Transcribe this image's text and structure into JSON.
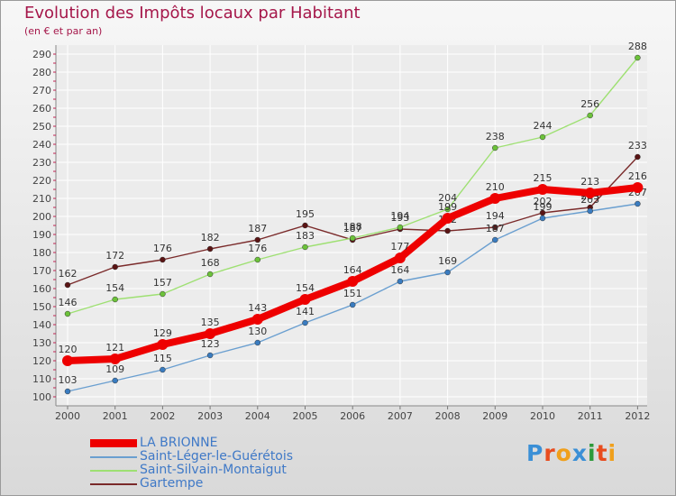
{
  "title": "Evolution des Impôts locaux par Habitant",
  "subtitle": "(en € et par an)",
  "logo": {
    "text": "Proxiti",
    "letters": [
      {
        "ch": "P",
        "color": "#3a8fd6"
      },
      {
        "ch": "r",
        "color": "#e84c1e"
      },
      {
        "ch": "o",
        "color": "#f0a01c"
      },
      {
        "ch": "x",
        "color": "#3a8fd6"
      },
      {
        "ch": "i",
        "color": "#2d9a3a"
      },
      {
        "ch": "t",
        "color": "#e84c1e"
      },
      {
        "ch": "i",
        "color": "#f0a01c"
      }
    ]
  },
  "chart_data": {
    "type": "line",
    "title": "Evolution des Impôts locaux par Habitant",
    "subtitle": "(en € et par an)",
    "xlabel": "",
    "ylabel": "",
    "x": [
      "2000",
      "2001",
      "2002",
      "2003",
      "2004",
      "2005",
      "2006",
      "2007",
      "2008",
      "2009",
      "2010",
      "2011",
      "2012"
    ],
    "ylim": [
      100,
      290
    ],
    "yticks": [
      100,
      110,
      120,
      130,
      140,
      150,
      160,
      170,
      180,
      190,
      200,
      210,
      220,
      230,
      240,
      250,
      260,
      270,
      280,
      290
    ],
    "grid": true,
    "legend_position": "bottom-left",
    "series": [
      {
        "name": "Gartempe",
        "color": "#7a2a2a",
        "point_color": "#5a1414",
        "thick": false,
        "values": [
          162,
          172,
          176,
          182,
          187,
          195,
          187,
          193,
          192,
          194,
          202,
          205,
          233
        ],
        "labels": [
          "162",
          "172",
          "176",
          "182",
          "187",
          "195",
          "187",
          "193",
          "192",
          "194",
          "202",
          "205",
          "233"
        ]
      },
      {
        "name": "Saint-Silvain-Montaigut",
        "color": "#9ee072",
        "point_color": "#6cc23a",
        "thick": false,
        "values": [
          146,
          154,
          157,
          168,
          176,
          183,
          188,
          194,
          204,
          238,
          244,
          256,
          288
        ],
        "labels": [
          "146",
          "154",
          "157",
          "168",
          "176",
          "183",
          "188",
          "194",
          "204",
          "238",
          "244",
          "256",
          "288"
        ]
      },
      {
        "name": "Saint-Léger-le-Guérétois",
        "color": "#6a9fd0",
        "point_color": "#3a7cc0",
        "thick": false,
        "values": [
          103,
          109,
          115,
          123,
          130,
          141,
          151,
          164,
          169,
          187,
          199,
          203,
          207
        ],
        "labels": [
          "103",
          "109",
          "115",
          "123",
          "130",
          "141",
          "151",
          "164",
          "169",
          "187",
          "199",
          "203",
          "207"
        ]
      },
      {
        "name": "LA BRIONNE",
        "color": "#ee0000",
        "point_color": "#ee0000",
        "thick": true,
        "values": [
          120,
          121,
          129,
          135,
          143,
          154,
          164,
          177,
          199,
          210,
          215,
          213,
          216
        ],
        "labels": [
          "120",
          "121",
          "129",
          "135",
          "143",
          "154",
          "164",
          "177",
          "199",
          "210",
          "215",
          "213",
          "216"
        ]
      }
    ],
    "legend": [
      {
        "name": "LA BRIONNE",
        "color": "#ee0000",
        "thick": true
      },
      {
        "name": "Saint-Léger-le-Guérétois",
        "color": "#6a9fd0",
        "thick": false
      },
      {
        "name": "Saint-Silvain-Montaigut",
        "color": "#9ee072",
        "thick": false
      },
      {
        "name": "Gartempe",
        "color": "#7a2a2a",
        "thick": false
      }
    ]
  }
}
